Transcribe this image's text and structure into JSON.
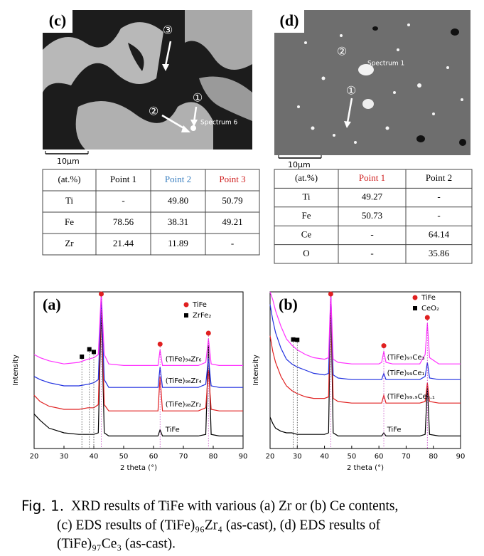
{
  "panels": [
    {
      "label": "(c)",
      "annotations": [
        "③",
        "②",
        "①",
        "Spectrum 6"
      ],
      "scale_bar": "10μm",
      "table": {
        "header": [
          "(at.%)",
          "Point 1",
          "Point 2",
          "Point 3"
        ],
        "rows": [
          [
            "Ti",
            "-",
            "49.80",
            "50.79"
          ],
          [
            "Fe",
            "78.56",
            "38.31",
            "49.21"
          ],
          [
            "Zr",
            "21.44",
            "11.89",
            "-"
          ]
        ]
      }
    },
    {
      "label": "(d)",
      "annotations": [
        "②",
        "Spectrum 1",
        "①"
      ],
      "scale_bar": "10μm",
      "table": {
        "header": [
          "(at.%)",
          "Point 1",
          "Point 2"
        ],
        "rows": [
          [
            "Ti",
            "49.27",
            "-"
          ],
          [
            "Fe",
            "50.73",
            "-"
          ],
          [
            "Ce",
            "-",
            "64.14"
          ],
          [
            "O",
            "-",
            "35.86"
          ]
        ]
      }
    }
  ],
  "chart_data": [
    {
      "type": "line",
      "label": "(a)",
      "xlabel": "2 theta (°)",
      "ylabel": "Intensity",
      "xlim": [
        20,
        90
      ],
      "xticks": [
        20,
        30,
        40,
        50,
        60,
        70,
        80,
        90
      ],
      "ylim": [
        0,
        100
      ],
      "x": [
        20,
        22,
        25,
        30,
        35,
        38,
        40,
        41.5,
        42.5,
        43.5,
        45,
        50,
        55,
        60,
        61.5,
        62.2,
        63,
        65,
        70,
        75,
        77.5,
        78.4,
        79.3,
        82,
        85,
        90
      ],
      "series": [
        {
          "name": "TiFe",
          "color": "#000000",
          "values": [
            22,
            18,
            13,
            10,
            9,
            9,
            9,
            10,
            90,
            10,
            8,
            8,
            8,
            8,
            8,
            12,
            8,
            8,
            8,
            8,
            9,
            66,
            9,
            8,
            8,
            8
          ]
        },
        {
          "name": "(TiFe)₉₈Zr₂",
          "color": "#e02020",
          "values": [
            34,
            30,
            27,
            25,
            25,
            26,
            26,
            28,
            95,
            28,
            24,
            24,
            24,
            24,
            24,
            46,
            24,
            24,
            24,
            24,
            26,
            50,
            25,
            24,
            24,
            24
          ]
        },
        {
          "name": "(TiFe)₉₆Zr₄",
          "color": "#2030e0",
          "values": [
            46,
            44,
            42,
            40,
            40,
            41,
            42,
            44,
            97,
            44,
            39,
            39,
            39,
            39,
            39,
            52,
            39,
            39,
            39,
            39,
            41,
            58,
            40,
            39,
            39,
            39
          ]
        },
        {
          "name": "(TiFe)₉₄Zr₆",
          "color": "#ff30ff",
          "values": [
            60,
            58,
            56,
            54,
            55,
            57,
            58,
            60,
            100,
            60,
            54,
            53,
            53,
            53,
            53,
            63,
            53,
            53,
            53,
            53,
            55,
            70,
            54,
            53,
            53,
            53
          ]
        }
      ],
      "markers": [
        {
          "name": "TiFe",
          "shape": "circle",
          "color": "#e02020",
          "x": [
            42.5,
            62.2,
            78.4
          ]
        },
        {
          "name": "ZrFe₂",
          "shape": "square",
          "color": "#000000",
          "x": [
            36,
            38.5,
            40
          ]
        }
      ]
    },
    {
      "type": "line",
      "label": "(b)",
      "xlabel": "2 theta (°)",
      "ylabel": "Intensity",
      "xlim": [
        20,
        90
      ],
      "xticks": [
        20,
        30,
        40,
        50,
        60,
        70,
        80,
        90
      ],
      "ylim": [
        0,
        100
      ],
      "x": [
        20,
        21,
        22,
        24,
        26,
        28,
        30,
        33,
        36,
        40,
        41.5,
        42.3,
        43.2,
        45,
        50,
        55,
        60,
        61,
        61.8,
        62.6,
        65,
        70,
        75,
        77,
        77.8,
        78.6,
        82,
        90
      ],
      "series": [
        {
          "name": "TiFe",
          "color": "#000000",
          "values": [
            20,
            16,
            13,
            11,
            10,
            10,
            9,
            9,
            9,
            9,
            10,
            98,
            10,
            8,
            8,
            8,
            8,
            8,
            10,
            8,
            8,
            8,
            8,
            9,
            40,
            9,
            8,
            8
          ]
        },
        {
          "name": "(TiFe)₉₉.₉Ce₀.₁",
          "color": "#e02020",
          "values": [
            72,
            62,
            55,
            46,
            40,
            37,
            35,
            33,
            32,
            32,
            33,
            99,
            32,
            30,
            29,
            29,
            29,
            29,
            34,
            29,
            29,
            29,
            29,
            30,
            42,
            30,
            29,
            29
          ]
        },
        {
          "name": "(TiFe)₉₉Ce₁",
          "color": "#2030e0",
          "values": [
            92,
            82,
            74,
            64,
            57,
            54,
            52,
            50,
            48,
            47,
            48,
            100,
            47,
            45,
            44,
            44,
            44,
            44,
            48,
            44,
            44,
            44,
            44,
            46,
            55,
            45,
            44,
            44
          ]
        },
        {
          "name": "(TiFe)₉₇Ce₃",
          "color": "#ff30ff",
          "values": [
            100,
            95,
            88,
            78,
            70,
            66,
            63,
            60,
            58,
            57,
            58,
            100,
            57,
            55,
            54,
            54,
            54,
            55,
            62,
            55,
            54,
            54,
            54,
            60,
            80,
            58,
            54,
            54
          ]
        }
      ],
      "markers": [
        {
          "name": "TiFe",
          "shape": "circle",
          "color": "#e02020",
          "x": [
            42.3,
            61.8,
            77.8
          ]
        },
        {
          "name": "CeO₂",
          "shape": "square",
          "color": "#000000",
          "x": [
            28.5,
            30
          ]
        }
      ]
    }
  ],
  "caption": {
    "label": "Fig. 1.",
    "lines": [
      "XRD results of TiFe with various (a) Zr or (b) Ce contents,",
      "(c) EDS results of (TiFe)₉₆Zr₄ (as-cast), (d) EDS results of",
      "(TiFe)₉₇Ce₃  (as-cast)."
    ]
  }
}
